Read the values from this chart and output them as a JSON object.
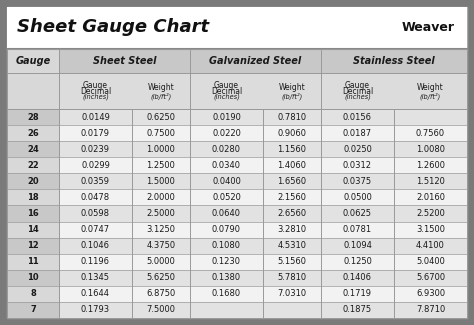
{
  "title": "Sheet Gauge Chart",
  "bg_outer": "#7a7a7a",
  "bg_white": "#ffffff",
  "bg_gray_header": "#c8c8c8",
  "bg_row_light": "#e0e0e0",
  "bg_row_white": "#f5f5f5",
  "gauges": [
    28,
    26,
    24,
    22,
    20,
    18,
    16,
    14,
    12,
    11,
    10,
    8,
    7
  ],
  "sheet_steel_dec": [
    "0.0149",
    "0.0179",
    "0.0239",
    "0.0299",
    "0.0359",
    "0.0478",
    "0.0598",
    "0.0747",
    "0.1046",
    "0.1196",
    "0.1345",
    "0.1644",
    "0.1793"
  ],
  "sheet_steel_wt": [
    "0.6250",
    "0.7500",
    "1.0000",
    "1.2500",
    "1.5000",
    "2.0000",
    "2.5000",
    "3.1250",
    "4.3750",
    "5.0000",
    "5.6250",
    "6.8750",
    "7.5000"
  ],
  "galv_dec": [
    "0.0190",
    "0.0220",
    "0.0280",
    "0.0340",
    "0.0400",
    "0.0520",
    "0.0640",
    "0.0790",
    "0.1080",
    "0.1230",
    "0.1380",
    "0.1680",
    ""
  ],
  "galv_wt": [
    "0.7810",
    "0.9060",
    "1.1560",
    "1.4060",
    "1.6560",
    "2.1560",
    "2.6560",
    "3.2810",
    "4.5310",
    "5.1560",
    "5.7810",
    "7.0310",
    ""
  ],
  "ss_dec": [
    "0.0156",
    "0.0187",
    "0.0250",
    "0.0312",
    "0.0375",
    "0.0500",
    "0.0625",
    "0.0781",
    "0.1094",
    "0.1250",
    "0.1406",
    "0.1719",
    "0.1875"
  ],
  "ss_wt": [
    "",
    "0.7560",
    "1.0080",
    "1.2600",
    "1.5120",
    "2.0160",
    "2.5200",
    "3.1500",
    "4.4100",
    "5.0400",
    "5.6700",
    "6.9300",
    "7.8710"
  ],
  "line_color": "#999999",
  "text_dark": "#1a1a1a"
}
